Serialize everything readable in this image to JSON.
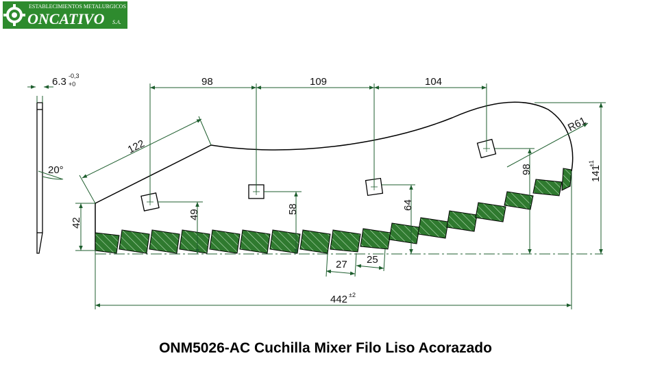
{
  "logo": {
    "top_text": "ESTABLECIMIENTOS METALURGICOS",
    "brand": "ONCATIVO",
    "suffix": "S.A."
  },
  "colors": {
    "green_dark": "#1a6b1a",
    "green_fill": "#2e7d2e",
    "dim_line": "#1e5e2e",
    "outline": "#000000"
  },
  "dimensions": {
    "thickness": "6.3",
    "thickness_tol_upper": "-0,3",
    "thickness_tol_lower": "+0",
    "spacing_1": "98",
    "spacing_2": "109",
    "spacing_3": "104",
    "slope_length": "122",
    "bevel_angle": "20°",
    "radius": "R61",
    "height_left": "42",
    "hole_1_height": "49",
    "hole_2_height": "58",
    "hole_3_height": "64",
    "hole_4_height": "98",
    "total_height": "141",
    "total_height_tol": "±1",
    "tooth_pitch": "27",
    "tooth_width": "25",
    "total_length": "442",
    "total_length_tol": "±2"
  },
  "caption": "ONM5026-AC Cuchilla Mixer Filo Liso Acorazado"
}
